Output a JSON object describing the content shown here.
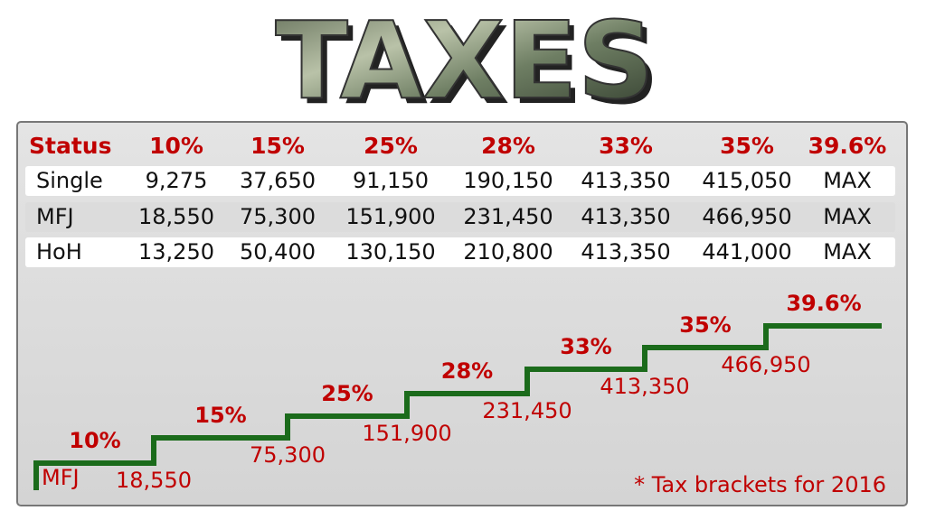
{
  "title": "TAXES",
  "table": {
    "header": [
      "Status",
      "10%",
      "15%",
      "25%",
      "28%",
      "33%",
      "35%",
      "39.6%"
    ],
    "rows": [
      [
        "Single",
        "9,275",
        "37,650",
        "91,150",
        "190,150",
        "413,350",
        "415,050",
        "MAX"
      ],
      [
        "MFJ",
        "18,550",
        "75,300",
        "151,900",
        "231,450",
        "413,350",
        "466,950",
        "MAX"
      ],
      [
        "HoH",
        "13,250",
        "50,400",
        "130,150",
        "210,800",
        "413,350",
        "441,000",
        "MAX"
      ]
    ]
  },
  "steps": {
    "group": "MFJ",
    "items": [
      {
        "rate": "10%",
        "amount": "18,550"
      },
      {
        "rate": "15%",
        "amount": "75,300"
      },
      {
        "rate": "25%",
        "amount": "151,900"
      },
      {
        "rate": "28%",
        "amount": "231,450"
      },
      {
        "rate": "33%",
        "amount": "413,350"
      },
      {
        "rate": "35%",
        "amount": "466,950"
      },
      {
        "rate": "39.6%"
      }
    ]
  },
  "footnote": "* Tax brackets for 2016"
}
